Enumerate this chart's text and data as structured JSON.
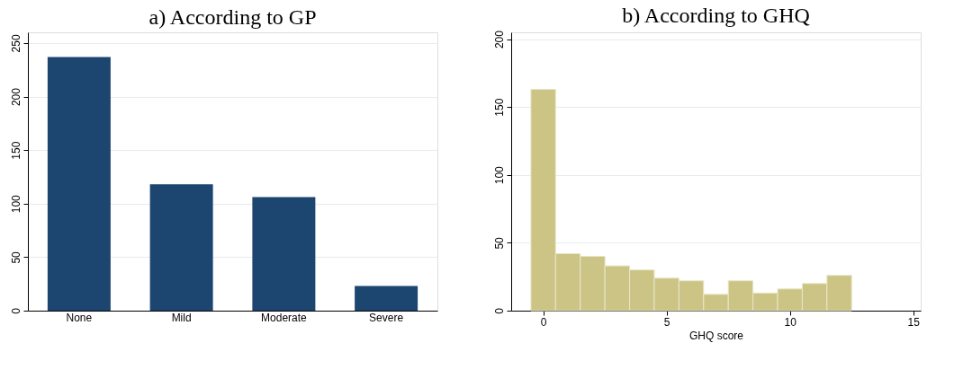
{
  "chart_data": [
    {
      "type": "bar",
      "title": "a) According to GP",
      "categories": [
        "None",
        "Mild",
        "Moderate",
        "Severe"
      ],
      "values": [
        237,
        118,
        106,
        23
      ],
      "color": "#1c4670",
      "ylim": [
        0,
        260
      ],
      "yticks": [
        0,
        50,
        100,
        150,
        200,
        250
      ],
      "grid": "y"
    },
    {
      "type": "histogram",
      "title": "b) According to GHQ",
      "xlabel": "GHQ score",
      "bins": [
        -0.5,
        0.5,
        1.5,
        2.5,
        3.5,
        4.5,
        5.5,
        6.5,
        7.5,
        8.5,
        9.5,
        10.5,
        11.5,
        12.5
      ],
      "values": [
        163,
        42,
        40,
        33,
        30,
        24,
        22,
        12,
        22,
        13,
        16,
        20,
        26
      ],
      "color": "#ccc484",
      "xlim": [
        -1.3,
        15.3
      ],
      "xticks": [
        0,
        5,
        10,
        15
      ],
      "ylim": [
        0,
        205
      ],
      "yticks": [
        0,
        50,
        100,
        150,
        200
      ],
      "grid": "y"
    }
  ]
}
